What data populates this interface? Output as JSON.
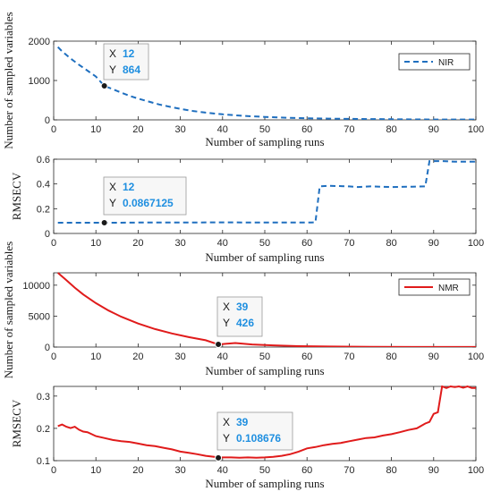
{
  "chart_data": [
    {
      "type": "line",
      "xlabel": "Number of sampling runs",
      "ylabel": "Number of  sampled variables",
      "xlim": [
        0,
        100
      ],
      "ylim": [
        0,
        2000
      ],
      "xticks": [
        "0",
        "10",
        "20",
        "30",
        "40",
        "50",
        "60",
        "70",
        "80",
        "90",
        "100"
      ],
      "yticks": [
        "0",
        "1000",
        "2000"
      ],
      "legend": "top-right",
      "series": [
        {
          "name": "NIR",
          "color": "#1f6fbf",
          "style": "dashed",
          "x": [
            1,
            2,
            4,
            6,
            8,
            10,
            12,
            14,
            16,
            18,
            20,
            22,
            25,
            28,
            30,
            33,
            36,
            40,
            45,
            50,
            55,
            60,
            65,
            70,
            80,
            90,
            100
          ],
          "y": [
            1850,
            1740,
            1560,
            1400,
            1250,
            1100,
            864,
            780,
            690,
            610,
            540,
            480,
            390,
            320,
            280,
            225,
            185,
            140,
            100,
            75,
            55,
            42,
            32,
            25,
            15,
            10,
            8
          ]
        }
      ],
      "datatip": {
        "x_label": "X",
        "x_value": "12",
        "y_label": "Y",
        "y_value": "864",
        "x": 12,
        "y": 864
      }
    },
    {
      "type": "line",
      "xlabel": "Number of sampling runs",
      "ylabel": "RMSECV",
      "xlim": [
        0,
        100
      ],
      "ylim": [
        0,
        0.6
      ],
      "xticks": [
        "0",
        "10",
        "20",
        "30",
        "40",
        "50",
        "60",
        "70",
        "80",
        "90",
        "100"
      ],
      "yticks": [
        "0",
        "0.2",
        "0.4",
        "0.6"
      ],
      "series": [
        {
          "name": "",
          "color": "#1f6fbf",
          "style": "dashed",
          "x": [
            1,
            5,
            10,
            12,
            15,
            20,
            30,
            40,
            50,
            55,
            60,
            61,
            62,
            63,
            65,
            70,
            72,
            75,
            80,
            85,
            88,
            89,
            92,
            95,
            100
          ],
          "y": [
            0.0867,
            0.0867,
            0.0867,
            0.0867125,
            0.0867,
            0.088,
            0.088,
            0.09,
            0.088,
            0.088,
            0.088,
            0.088,
            0.09,
            0.38,
            0.385,
            0.38,
            0.375,
            0.38,
            0.375,
            0.378,
            0.38,
            0.585,
            0.585,
            0.58,
            0.58
          ]
        }
      ],
      "datatip": {
        "x_label": "X",
        "x_value": "12",
        "y_label": "Y",
        "y_value": "0.0867125",
        "x": 12,
        "y": 0.0867125
      }
    },
    {
      "type": "line",
      "xlabel": "Number of sampling runs",
      "ylabel": "Number of  sampled variables",
      "xlim": [
        0,
        100
      ],
      "ylim": [
        0,
        12000
      ],
      "xticks": [
        "0",
        "10",
        "20",
        "30",
        "40",
        "50",
        "60",
        "70",
        "80",
        "90",
        "100"
      ],
      "yticks": [
        "0",
        "5000",
        "10000"
      ],
      "legend": "top-right",
      "series": [
        {
          "name": "NMR",
          "color": "#e01b1b",
          "style": "solid",
          "x": [
            1,
            3,
            5,
            7,
            10,
            13,
            16,
            20,
            24,
            28,
            32,
            36,
            39,
            43,
            47,
            52,
            58,
            65,
            75,
            85,
            90,
            95,
            100
          ],
          "y": [
            12000,
            10800,
            9600,
            8500,
            7100,
            5900,
            4900,
            3800,
            2900,
            2200,
            1600,
            1100,
            426,
            650,
            420,
            270,
            150,
            80,
            40,
            20,
            15,
            10,
            8
          ]
        }
      ],
      "datatip": {
        "x_label": "X",
        "x_value": "39",
        "y_label": "Y",
        "y_value": "426",
        "x": 39,
        "y": 426
      }
    },
    {
      "type": "line",
      "xlabel": "Number of sampling runs",
      "ylabel": "RMSECV",
      "xlim": [
        0,
        100
      ],
      "ylim": [
        0.1,
        0.33
      ],
      "xticks": [
        "0",
        "10",
        "20",
        "30",
        "40",
        "50",
        "60",
        "70",
        "80",
        "90",
        "100"
      ],
      "yticks": [
        "0.1",
        "0.2",
        "0.3"
      ],
      "series": [
        {
          "name": "",
          "color": "#e01b1b",
          "style": "solid",
          "x": [
            1,
            2,
            3,
            4,
            5,
            6,
            7,
            8,
            9,
            10,
            12,
            14,
            16,
            18,
            20,
            22,
            24,
            26,
            28,
            30,
            32,
            34,
            36,
            38,
            39,
            40,
            42,
            44,
            46,
            48,
            50,
            52,
            54,
            56,
            58,
            60,
            62,
            64,
            66,
            68,
            70,
            72,
            74,
            76,
            78,
            80,
            82,
            84,
            86,
            88,
            89,
            90,
            91,
            92,
            93,
            94,
            95,
            96,
            97,
            98,
            99,
            100
          ],
          "y": [
            0.207,
            0.212,
            0.205,
            0.201,
            0.205,
            0.196,
            0.19,
            0.188,
            0.182,
            0.176,
            0.17,
            0.164,
            0.16,
            0.158,
            0.153,
            0.148,
            0.145,
            0.14,
            0.135,
            0.128,
            0.124,
            0.12,
            0.115,
            0.112,
            0.108676,
            0.11,
            0.11,
            0.109,
            0.11,
            0.109,
            0.11,
            0.112,
            0.115,
            0.12,
            0.128,
            0.138,
            0.142,
            0.148,
            0.152,
            0.155,
            0.16,
            0.165,
            0.17,
            0.172,
            0.178,
            0.182,
            0.188,
            0.195,
            0.2,
            0.215,
            0.22,
            0.245,
            0.25,
            0.33,
            0.325,
            0.33,
            0.328,
            0.33,
            0.326,
            0.33,
            0.325,
            0.325
          ]
        }
      ],
      "datatip": {
        "x_label": "X",
        "x_value": "39",
        "y_label": "Y",
        "y_value": "0.108676",
        "x": 39,
        "y": 0.108676
      }
    }
  ]
}
